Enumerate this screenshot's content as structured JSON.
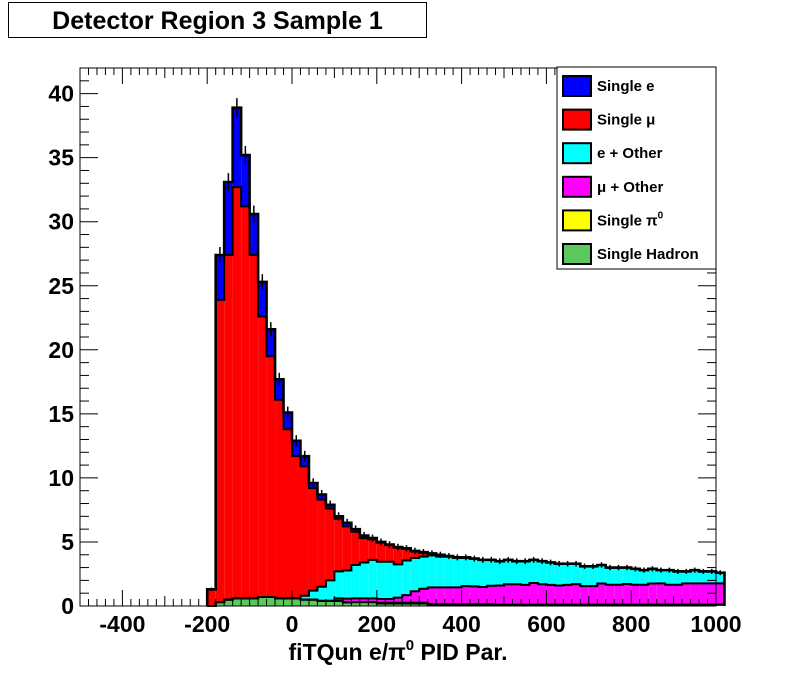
{
  "chart_data": {
    "type": "area",
    "subtype": "stacked-histogram",
    "title": "Detector Region 3 Sample 1",
    "xlabel_parts": [
      "fiTQun e/",
      "π",
      "0",
      " PID Par."
    ],
    "ylabel": "",
    "xlim": [
      -500,
      1000
    ],
    "ylim": [
      0,
      42
    ],
    "bin_width": 20,
    "x_start": -200,
    "x_ticks": [
      -400,
      -200,
      0,
      200,
      400,
      600,
      800,
      1000
    ],
    "y_ticks": [
      0,
      5,
      10,
      15,
      20,
      25,
      30,
      35,
      40
    ],
    "legend_position": "top-right",
    "grid": false,
    "totals": [
      1.3,
      27.4,
      33.1,
      38.9,
      35.2,
      30.6,
      25.3,
      21.6,
      17.7,
      15.1,
      12.9,
      11.7,
      9.6,
      8.7,
      7.9,
      7.0,
      6.5,
      6.0,
      5.5,
      5.3,
      5.0,
      4.8,
      4.6,
      4.5,
      4.3,
      4.2,
      4.1,
      4.0,
      3.9,
      3.8,
      3.8,
      3.7,
      3.6,
      3.6,
      3.5,
      3.6,
      3.5,
      3.5,
      3.6,
      3.5,
      3.4,
      3.3,
      3.3,
      3.3,
      3.1,
      3.1,
      3.2,
      3.0,
      3.0,
      3.0,
      2.9,
      2.8,
      2.9,
      2.8,
      2.8,
      2.7,
      2.7,
      2.8,
      2.7,
      2.7,
      2.6
    ],
    "series": [
      {
        "name": "Single Hadron",
        "color": "#5ac85a",
        "values": [
          0,
          0.3,
          0.5,
          0.6,
          0.6,
          0.6,
          0.7,
          0.7,
          0.6,
          0.6,
          0.6,
          0.5,
          0.5,
          0.4,
          0.4,
          0.4,
          0.3,
          0.3,
          0.3,
          0.3,
          0.2,
          0.2,
          0.2,
          0.2,
          0.2,
          0.2,
          0.1,
          0.1,
          0.1,
          0.1,
          0.1,
          0.1,
          0.1,
          0.1,
          0.1,
          0.1,
          0.1,
          0.1,
          0.1,
          0.1,
          0.1,
          0.1,
          0.1,
          0.1,
          0.1,
          0.1,
          0.1,
          0.1,
          0.1,
          0.1,
          0.1,
          0.1,
          0.1,
          0.1,
          0.1,
          0.1,
          0.1,
          0.1,
          0.1,
          0.1,
          0.1
        ]
      },
      {
        "name": "Single π0",
        "color": "#ffff00",
        "values": [
          0,
          0,
          0,
          0,
          0,
          0,
          0,
          0,
          0,
          0,
          0,
          0,
          0,
          0,
          0,
          0,
          0,
          0,
          0,
          0,
          0.05,
          0.05,
          0.05,
          0.05,
          0.05,
          0.05,
          0.05,
          0.05,
          0.05,
          0.05,
          0.05,
          0.05,
          0.05,
          0.05,
          0,
          0,
          0,
          0,
          0,
          0,
          0,
          0,
          0,
          0,
          0,
          0,
          0,
          0,
          0,
          0,
          0,
          0,
          0,
          0,
          0,
          0,
          0,
          0,
          0,
          0,
          0
        ]
      },
      {
        "name": "μ + Other",
        "color": "#ff00ff",
        "values": [
          0,
          0,
          0,
          0,
          0,
          0,
          0,
          0,
          0,
          0,
          0,
          0,
          0,
          0,
          0,
          0.2,
          0.3,
          0.3,
          0.3,
          0.3,
          0.3,
          0.3,
          0.4,
          0.6,
          0.9,
          1.1,
          1.3,
          1.3,
          1.3,
          1.3,
          1.4,
          1.4,
          1.4,
          1.5,
          1.5,
          1.6,
          1.6,
          1.5,
          1.7,
          1.5,
          1.5,
          1.4,
          1.5,
          1.5,
          1.4,
          1.4,
          1.6,
          1.5,
          1.5,
          1.5,
          1.5,
          1.5,
          1.6,
          1.6,
          1.5,
          1.5,
          1.6,
          1.6,
          1.6,
          1.6,
          1.6
        ]
      },
      {
        "name": "e + Other",
        "color": "#00ffff",
        "values": [
          0,
          0,
          0,
          0,
          0,
          0,
          0,
          0,
          0,
          0,
          0,
          0.3,
          0.7,
          1.1,
          1.6,
          2.1,
          2.3,
          2.6,
          2.8,
          3.0,
          2.9,
          2.9,
          2.6,
          2.7,
          2.6,
          2.5,
          2.5,
          2.4,
          2.4,
          2.3,
          2.2,
          2.2,
          2.2,
          2.1,
          1.9,
          1.9,
          1.8,
          1.8,
          1.8,
          1.7,
          1.7,
          1.6,
          1.6,
          1.5,
          1.5,
          1.5,
          1.4,
          1.3,
          1.3,
          1.2,
          1.2,
          1.1,
          1.1,
          1.0,
          1.1,
          1.0,
          0.9,
          1.0,
          0.9,
          0.9,
          0.8
        ]
      },
      {
        "name": "Single μ",
        "color": "#ff0000",
        "values": [
          1.3,
          23.6,
          26.9,
          32.1,
          30.6,
          26.8,
          21.9,
          18.8,
          15.5,
          13.2,
          11.1,
          10.1,
          8.0,
          6.8,
          5.6,
          4.1,
          3.6,
          2.6,
          1.9,
          1.6,
          1.5,
          1.3,
          1.3,
          0.9,
          0.5,
          0.3,
          0.1,
          0.1,
          0,
          0,
          0,
          0,
          0,
          0,
          0,
          0,
          0,
          0,
          0,
          0,
          0,
          0,
          0,
          0,
          0,
          0,
          0,
          0,
          0,
          0,
          0,
          0,
          0,
          0,
          0,
          0,
          0,
          0,
          0,
          0,
          0
        ]
      },
      {
        "name": "Single e",
        "color": "#0000ff",
        "values": [
          0,
          3.5,
          5.7,
          6.2,
          4.0,
          3.2,
          2.7,
          2.1,
          1.6,
          1.3,
          1.2,
          0.8,
          0.4,
          0.4,
          0.3,
          0.2,
          0.3,
          0.2,
          0.2,
          0.1,
          0.05,
          0.05,
          0.05,
          0.05,
          0.05,
          0.05,
          0.05,
          0.05,
          0.05,
          0.05,
          0.05,
          0,
          0,
          0,
          0,
          0,
          0,
          0,
          0,
          0,
          0,
          0,
          0,
          0,
          0,
          0,
          0,
          0,
          0,
          0,
          0,
          0,
          0,
          0,
          0,
          0,
          0,
          0,
          0,
          0,
          0
        ]
      }
    ],
    "legend": [
      {
        "label": "Single e",
        "color": "#0000ff"
      },
      {
        "label": "Single  μ",
        "color": "#ff0000"
      },
      {
        "label": "e + Other",
        "color": "#00ffff"
      },
      {
        "label": "μ + Other",
        "color": "#ff00ff"
      },
      {
        "label": "Single  π",
        "sup": "0",
        "color": "#ffff00"
      },
      {
        "label": "Single Hadron",
        "color": "#5ac85a"
      }
    ]
  }
}
